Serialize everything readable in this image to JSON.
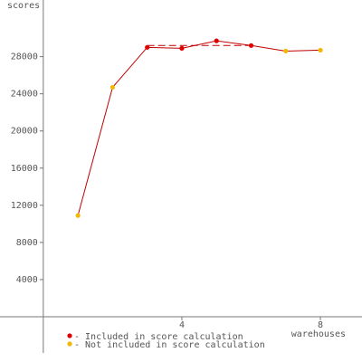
{
  "chart_data": {
    "type": "line",
    "y_label": "scores",
    "x_label": "warehouses",
    "x": [
      1,
      2,
      3,
      4,
      5,
      6,
      7,
      8
    ],
    "values": [
      10900,
      24700,
      29000,
      28900,
      29700,
      29200,
      28600,
      28700
    ],
    "line_color": "#c00000",
    "legend": [
      {
        "name": "- Included in score calculation",
        "color": "#e00000"
      },
      {
        "name": "- Not included in score calculation",
        "color": "#f0b800"
      }
    ],
    "point_legend": [
      1,
      1,
      0,
      0,
      0,
      0,
      1,
      1
    ],
    "score_line": {
      "value": 29200,
      "from": 3,
      "to": 6
    },
    "xlim": [
      -1.25,
      9.2
    ],
    "ylim": [
      -3900,
      34100
    ],
    "xticks": [
      4,
      8
    ],
    "yticks": [
      4000,
      8000,
      12000,
      16000,
      20000,
      24000,
      28000
    ]
  }
}
